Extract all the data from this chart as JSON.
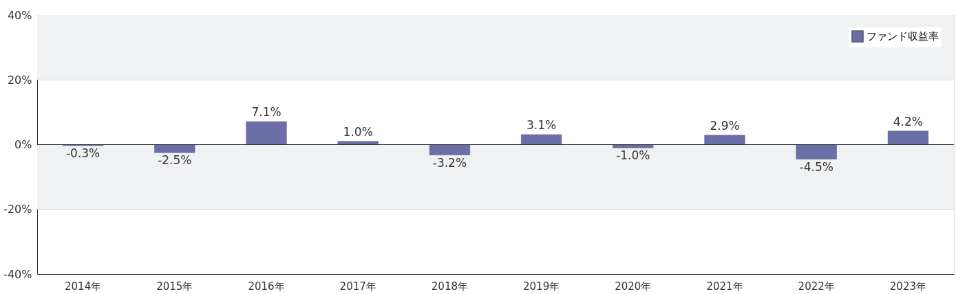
{
  "chart_data": {
    "type": "bar",
    "categories": [
      "2014年",
      "2015年",
      "2016年",
      "2017年",
      "2018年",
      "2019年",
      "2020年",
      "2021年",
      "2022年",
      "2023年"
    ],
    "series": [
      {
        "name": "ファンド収益率",
        "color": "#6b6fa8",
        "values": [
          -0.3,
          -2.5,
          7.1,
          1.0,
          -3.2,
          3.1,
          -1.0,
          2.9,
          -4.5,
          4.2
        ],
        "value_labels": [
          "-0.3%",
          "-2.5%",
          "7.1%",
          "1.0%",
          "-3.2%",
          "3.1%",
          "-1.0%",
          "2.9%",
          "-4.5%",
          "4.2%"
        ]
      }
    ],
    "ylim": [
      -40,
      40
    ],
    "yticks": [
      {
        "value": -40,
        "label": "-40%"
      },
      {
        "value": -20,
        "label": "-20%"
      },
      {
        "value": 0,
        "label": "0%"
      },
      {
        "value": 20,
        "label": "20%"
      },
      {
        "value": 40,
        "label": "40%"
      }
    ],
    "bands": [
      {
        "axis": "y",
        "from": 20,
        "to": 40,
        "color": "#f0f1f3"
      },
      {
        "axis": "y",
        "from": -20,
        "to": 0,
        "color": "#f0f1f3"
      }
    ],
    "ref_lines": [
      {
        "axis": "y",
        "value": 0,
        "color": "#333333"
      }
    ],
    "grid": "y",
    "legend": "top right"
  }
}
